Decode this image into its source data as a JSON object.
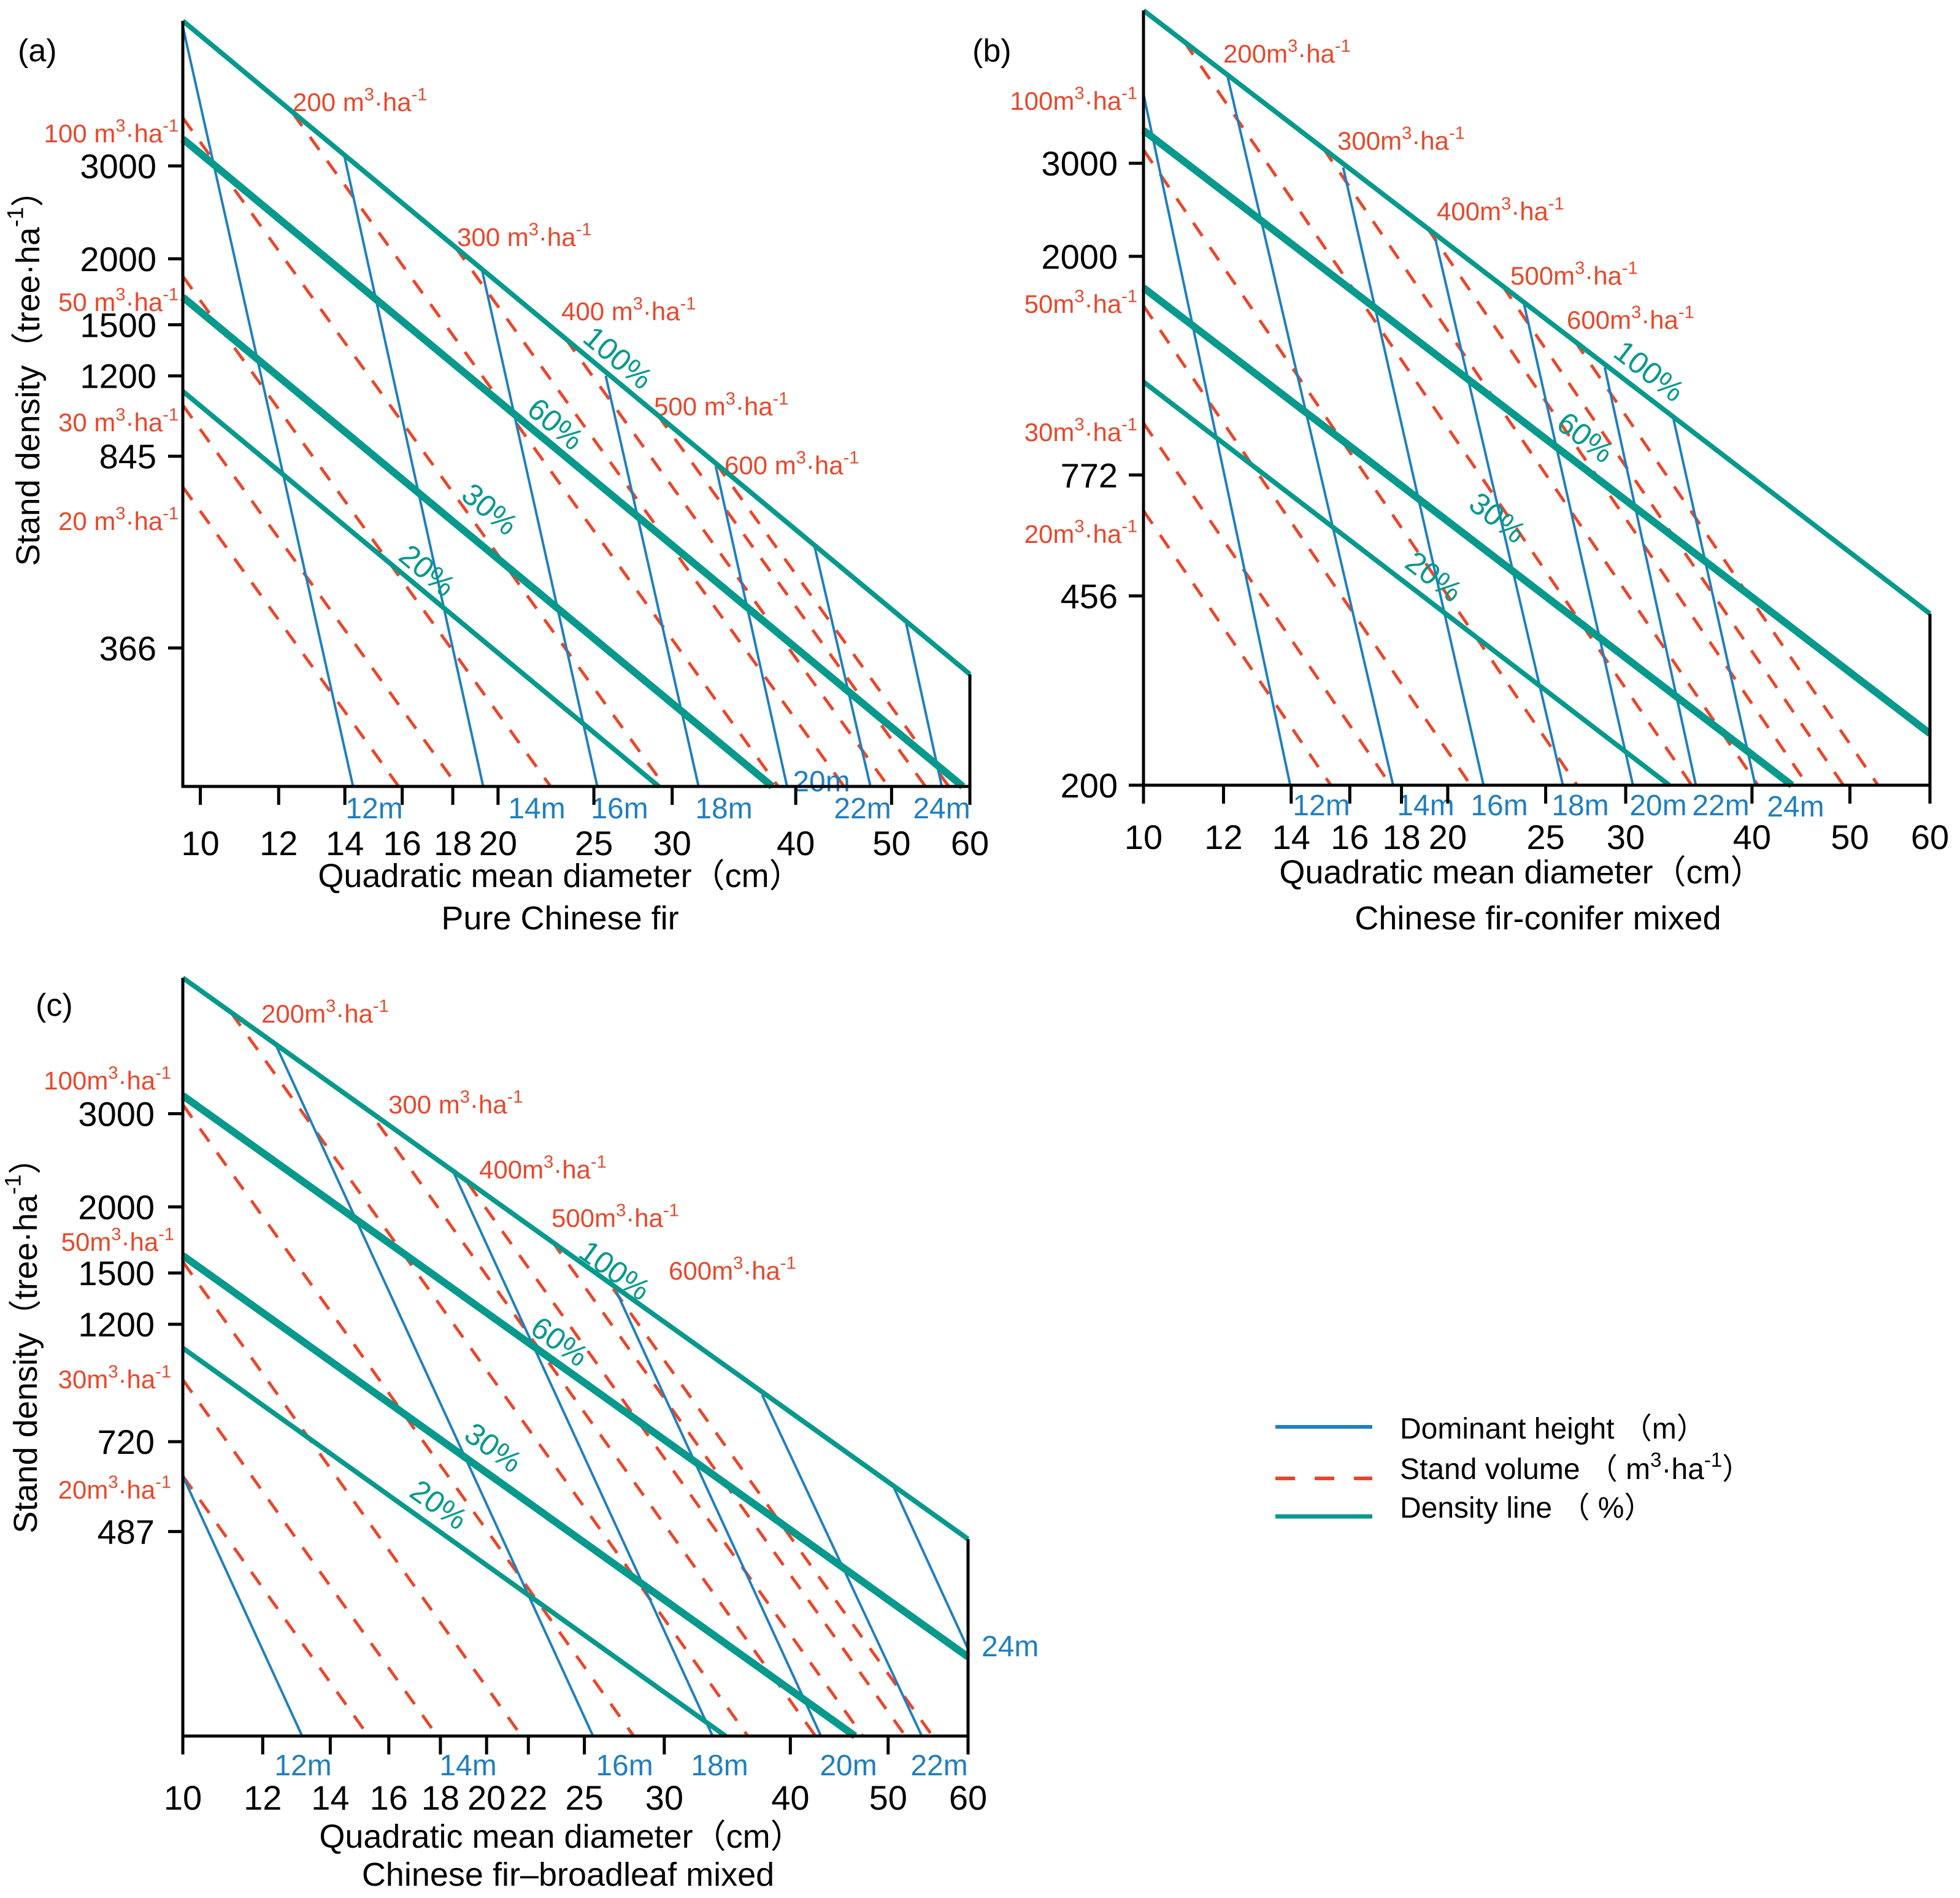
{
  "colors": {
    "height": "#1f7fc0",
    "volume": "#e8472b",
    "density": "#07998c",
    "axis": "#000000"
  },
  "legend": {
    "height": {
      "pre": "Dominant height （m）"
    },
    "volume": {
      "pre": "Stand volume （ m",
      "sup1": "3",
      "mid": "·ha",
      "sup2": "-1",
      "post": "）"
    },
    "density": {
      "pre": "Density line （ %）"
    }
  },
  "chart_data": [
    {
      "id": "a",
      "type": "line",
      "tag": "(a)",
      "title": "Pure Chinese fir",
      "xlabel": "Quadratic mean diameter（cm）",
      "ylabel": {
        "pre": "Stand density（tree·ha",
        "sup": "-1",
        "post": "）"
      },
      "xscale": "log",
      "yscale": "log",
      "xlim": [
        9.6,
        60
      ],
      "ylim": [
        200,
        5650
      ],
      "xticks": [
        10,
        12,
        14,
        16,
        18,
        20,
        25,
        30,
        40,
        50,
        60
      ],
      "yticks": [
        3000,
        2000,
        1500,
        1200,
        845,
        366
      ],
      "density_slope": -1.556,
      "density_lines": [
        {
          "label": "100%",
          "start": [
            9.6,
            5650
          ]
        },
        {
          "label": "60%",
          "start": [
            9.6,
            3375
          ]
        },
        {
          "label": "30%",
          "start": [
            9.6,
            1692
          ]
        },
        {
          "label": "20%",
          "start": [
            9.6,
            1122
          ]
        }
      ],
      "volume_slope": -2.6,
      "volume_lines": [
        {
          "value": "20 m",
          "sup1": "3",
          "mid": "·ha",
          "sup2": "-1",
          "start": [
            9.6,
            739
          ]
        },
        {
          "value": "30 m",
          "sup1": "3",
          "mid": "·ha",
          "sup2": "-1",
          "start": [
            9.6,
            1056
          ]
        },
        {
          "value": "50 m",
          "sup1": "3",
          "mid": "·ha",
          "sup2": "-1",
          "start": [
            9.6,
            1854
          ]
        },
        {
          "value": "100 m",
          "sup1": "3",
          "mid": "·ha",
          "sup2": "-1",
          "start": [
            9.6,
            3700
          ]
        },
        {
          "value": "200 m",
          "sup1": "3",
          "mid": "·ha",
          "sup2": "-1",
          "start": [
            12.4,
            3778
          ]
        },
        {
          "value": "300 m",
          "sup1": "3",
          "mid": "·ha",
          "sup2": "-1",
          "start": [
            18.1,
            2106
          ]
        },
        {
          "value": "400 m",
          "sup1": "3",
          "mid": "·ha",
          "sup2": "-1",
          "start": [
            23.4,
            1412
          ]
        },
        {
          "value": "500 m",
          "sup1": "3",
          "mid": "·ha",
          "sup2": "-1",
          "start": [
            29.0,
            1012
          ]
        },
        {
          "value": "600 m",
          "sup1": "3",
          "mid": "·ha",
          "sup2": "-1",
          "start": [
            33.2,
            820
          ]
        }
      ],
      "height_lines": [
        {
          "label": "12m",
          "start": [
            9.6,
            5513
          ],
          "end": [
            14.27,
            200
          ]
        },
        {
          "label": "14m",
          "start": [
            13.98,
            3141
          ],
          "end": [
            19.32,
            200
          ]
        },
        {
          "label": "16m",
          "start": [
            19.27,
            1902
          ],
          "end": [
            25.2,
            200
          ]
        },
        {
          "label": "18m",
          "start": [
            25.7,
            1200
          ],
          "end": [
            31.9,
            200
          ]
        },
        {
          "label": "20m",
          "start": [
            33.2,
            809
          ],
          "end": [
            39.2,
            200
          ]
        },
        {
          "label": "22m",
          "start": [
            41.8,
            569
          ],
          "end": [
            47.6,
            200
          ]
        },
        {
          "label": "24m",
          "start": [
            51.6,
            416
          ],
          "end": [
            56.2,
            200
          ]
        }
      ]
    },
    {
      "id": "b",
      "type": "line",
      "tag": "(b)",
      "title": "Chinese fir-conifer mixed",
      "xlabel": "Quadratic mean diameter（cm）",
      "xscale": "log",
      "yscale": "log",
      "xlim": [
        10,
        60
      ],
      "ylim": [
        200,
        5835
      ],
      "xticks": [
        10,
        12,
        14,
        16,
        18,
        20,
        25,
        30,
        40,
        50,
        60
      ],
      "yticks": [
        3000,
        2000,
        772,
        456,
        200
      ],
      "density_slope": -1.466,
      "density_lines": [
        {
          "label": "100%",
          "start": [
            10,
            5835
          ]
        },
        {
          "label": "60%",
          "start": [
            10,
            3462
          ]
        },
        {
          "label": "30%",
          "start": [
            10,
            1744
          ]
        },
        {
          "label": "20%",
          "start": [
            10,
            1158
          ]
        }
      ],
      "volume_slope": -2.8,
      "volume_lines": [
        {
          "value": "20m",
          "sup1": "3",
          "mid": "·ha",
          "sup2": "-1",
          "start": [
            10,
            661
          ]
        },
        {
          "value": "30m",
          "sup1": "3",
          "mid": "·ha",
          "sup2": "-1",
          "start": [
            10,
            968
          ]
        },
        {
          "value": "50m",
          "sup1": "3",
          "mid": "·ha",
          "sup2": "-1",
          "start": [
            10,
            1613
          ]
        },
        {
          "value": "100m",
          "sup1": "3",
          "mid": "·ha",
          "sup2": "-1",
          "start": [
            10,
            3180
          ]
        },
        {
          "value": "200m",
          "sup1": "3",
          "mid": "·ha",
          "sup2": "-1",
          "start": [
            10.97,
            5096
          ]
        },
        {
          "value": "300m",
          "sup1": "3",
          "mid": "·ha",
          "sup2": "-1",
          "start": [
            15.06,
            3202
          ]
        },
        {
          "value": "400m",
          "sup1": "3",
          "mid": "·ha",
          "sup2": "-1",
          "start": [
            19.1,
            2260
          ]
        },
        {
          "value": "500m",
          "sup1": "3",
          "mid": "·ha",
          "sup2": "-1",
          "start": [
            22.65,
            1761
          ]
        },
        {
          "value": "600m",
          "sup1": "3",
          "mid": "·ha",
          "sup2": "-1",
          "start": [
            26.7,
            1386
          ]
        }
      ],
      "height_lines": [
        {
          "label": "12m",
          "start": [
            10,
            4058
          ],
          "end": [
            13.97,
            200
          ]
        },
        {
          "label": "14m",
          "start": [
            12.11,
            4380
          ],
          "end": [
            17.66,
            200
          ]
        },
        {
          "label": "16m",
          "start": [
            15.76,
            2946
          ],
          "end": [
            21.7,
            200
          ]
        },
        {
          "label": "18m",
          "start": [
            19.45,
            2152
          ],
          "end": [
            26.0,
            200
          ]
        },
        {
          "label": "20m",
          "start": [
            23.8,
            1623
          ],
          "end": [
            30.5,
            200
          ]
        },
        {
          "label": "22m",
          "start": [
            28.6,
            1234
          ],
          "end": [
            35.2,
            200
          ]
        },
        {
          "label": "24m",
          "start": [
            33.4,
            998
          ],
          "end": [
            40.3,
            200
          ]
        }
      ]
    },
    {
      "id": "c",
      "type": "line",
      "tag": "(c)",
      "title": "Chinese fir–broadleaf mixed",
      "xlabel": "Quadratic mean diameter（cm）",
      "ylabel": {
        "pre": "Stand density（tree·ha",
        "sup": "-1",
        "post": "）"
      },
      "xscale": "log",
      "yscale": "log",
      "xlim": [
        10,
        60
      ],
      "ylim": [
        200,
        5418
      ],
      "xticks": [
        10,
        12,
        14,
        16,
        18,
        20,
        22,
        25,
        30,
        40,
        50,
        60
      ],
      "yticks": [
        3000,
        2000,
        1500,
        1200,
        720,
        487
      ],
      "density_slope": -1.363,
      "density_lines": [
        {
          "label": "100%",
          "start": [
            10,
            5418
          ]
        },
        {
          "label": "60%",
          "start": [
            10,
            3245
          ]
        },
        {
          "label": "30%",
          "start": [
            10,
            1618
          ]
        },
        {
          "label": "20%",
          "start": [
            10,
            1082
          ]
        }
      ],
      "volume_slope": -2.67,
      "volume_lines": [
        {
          "value": "20m",
          "sup1": "3",
          "mid": "·ha",
          "sup2": "-1",
          "start": [
            10,
            620
          ]
        },
        {
          "value": "30m",
          "sup1": "3",
          "mid": "·ha",
          "sup2": "-1",
          "start": [
            10,
            943
          ]
        },
        {
          "value": "50m",
          "sup1": "3",
          "mid": "·ha",
          "sup2": "-1",
          "start": [
            10,
            1575
          ]
        },
        {
          "value": "100m",
          "sup1": "3",
          "mid": "·ha",
          "sup2": "-1",
          "start": [
            10,
            3120
          ]
        },
        {
          "value": "200m",
          "sup1": "3",
          "mid": "·ha",
          "sup2": "-1",
          "start": [
            11.17,
            4652
          ]
        },
        {
          "value": "300 m",
          "sup1": "3",
          "mid": "·ha",
          "sup2": "-1",
          "start": [
            15.6,
            2880
          ]
        },
        {
          "value": "400m",
          "sup1": "3",
          "mid": "·ha",
          "sup2": "-1",
          "start": [
            19.17,
            2217
          ]
        },
        {
          "value": "500m",
          "sup1": "3",
          "mid": "·ha",
          "sup2": "-1",
          "start": [
            23.2,
            1727
          ]
        },
        {
          "value": "600m",
          "sup1": "3",
          "mid": "·ha",
          "sup2": "-1",
          "start": [
            26.7,
            1400
          ]
        }
      ],
      "height_lines": [
        {
          "label": "12m",
          "start": [
            10,
            620
          ],
          "end": [
            13.13,
            200
          ]
        },
        {
          "label": "14m"
        },
        {
          "label": "16m",
          "start": [
            12.38,
            4026
          ],
          "end": [
            25.5,
            200
          ]
        },
        {
          "label": "18m",
          "start": [
            18.56,
            2318
          ],
          "end": [
            33.5,
            200
          ]
        },
        {
          "label": "20m",
          "start": [
            26.9,
            1382
          ],
          "end": [
            42.9,
            200
          ]
        },
        {
          "label": "22m",
          "start": [
            37.5,
            883
          ],
          "end": [
            54.0,
            200
          ]
        },
        {
          "label": "24m",
          "start": [
            50.7,
            588
          ],
          "end": [
            60,
            292
          ]
        }
      ]
    }
  ]
}
